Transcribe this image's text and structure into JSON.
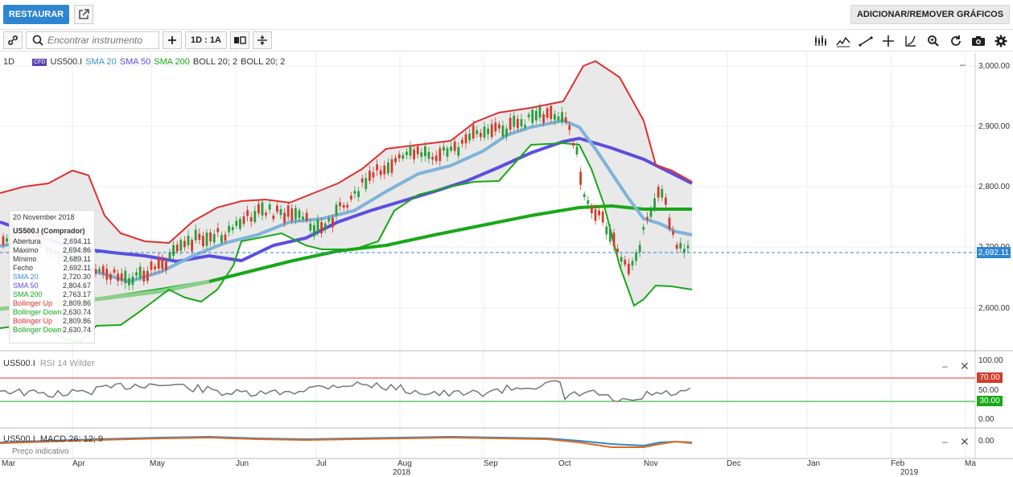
{
  "topbar": {
    "restore_label": "RESTAURAR",
    "add_remove_label": "ADICIONAR/REMOVER GRÁFICOS"
  },
  "toolbar": {
    "search_placeholder": "Encontrar instrumento",
    "period_label": "1D : 1A"
  },
  "legend": {
    "interval": "1D",
    "badge": "CFD",
    "symbol": "US500.I",
    "sma20": "SMA 20",
    "sma50": "SMA 50",
    "sma200": "SMA 200",
    "boll1": "BOLL 20; 2",
    "boll2": "BOLL 20; 2"
  },
  "tooltip": {
    "date": "20 November 2018",
    "instrument": "US500.I (Comprador)",
    "rows": [
      {
        "label": "Abertura",
        "value": "2,694.11"
      },
      {
        "label": "Máximo",
        "value": "2,694.86"
      },
      {
        "label": "Mínimo",
        "value": "2,689.11"
      },
      {
        "label": "Fecho",
        "value": "2,692.11"
      },
      {
        "label": "SMA 20",
        "value": "2,720.30"
      },
      {
        "label": "SMA 50",
        "value": "2,804.67"
      },
      {
        "label": "SMA 200",
        "value": "2,763.17"
      },
      {
        "label": "Bollinger Up",
        "value": "2,809.86"
      },
      {
        "label": "Bollinger Down",
        "value": "2,630.74"
      },
      {
        "label": "Bollinger Up",
        "value": "2,809.86"
      },
      {
        "label": "Bollinger Down",
        "value": "2,630.74"
      }
    ]
  },
  "price_axis": {
    "ticks": [
      "3,000.00",
      "2,900.00",
      "2,800.00",
      "2,700.00",
      "2,600.00"
    ],
    "current_price": "2,692.11"
  },
  "rsi_panel": {
    "symbol": "US500.I",
    "indicator": "RSI 14 Wilder",
    "ticks": [
      "100.00",
      "50.00",
      "0.00"
    ],
    "upper": "70.00",
    "lower": "30.00"
  },
  "macd_panel": {
    "symbol": "US500.I",
    "indicator": "MACD 26; 12; 9",
    "tick": "0.00",
    "footnote": "Preço indicativo"
  },
  "time_axis": {
    "months": [
      "Mar",
      "Apr",
      "May",
      "Jun",
      "Jul",
      "Aug",
      "Sep",
      "Oct",
      "Nov",
      "Dec",
      "Jan",
      "Feb",
      "Ma"
    ],
    "years": [
      "2018",
      "2019"
    ]
  },
  "colors": {
    "accent": "#2e86d1",
    "sma20": "#7fb3d9",
    "sma50": "#5c4ee0",
    "sma200": "#18a818",
    "boll_up": "#e03030",
    "boll_down": "#18a818",
    "rsi_upper": "#d23c2c",
    "rsi_lower": "#18a818"
  },
  "chart_data": {
    "type": "line",
    "x_unit": "date",
    "ylim": [
      2520,
      3040
    ],
    "close_approx": {
      "x": [
        "2018-03-01",
        "2018-04-01",
        "2018-05-01",
        "2018-06-01",
        "2018-07-01",
        "2018-08-01",
        "2018-09-01",
        "2018-10-01",
        "2018-10-29",
        "2018-11-20"
      ],
      "values": [
        2740,
        2660,
        2680,
        2740,
        2780,
        2840,
        2900,
        2920,
        2640,
        2692.11
      ]
    }
  }
}
